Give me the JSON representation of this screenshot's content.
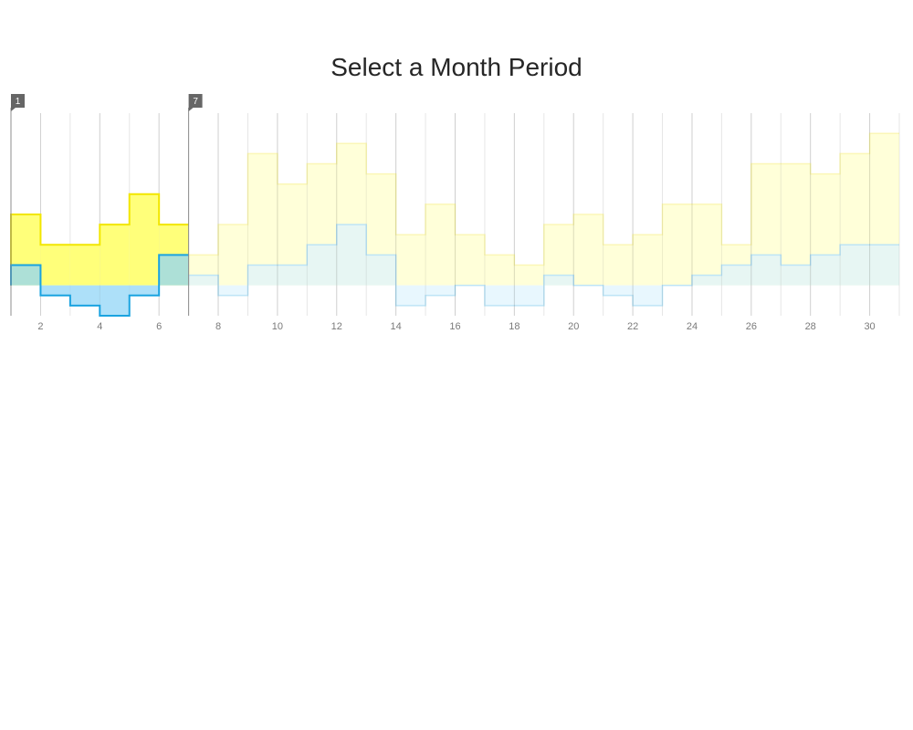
{
  "chart_data": {
    "type": "area",
    "step": true,
    "title": "Select a Month Period",
    "xlabel": "",
    "ylabel": "",
    "x": [
      1,
      2,
      3,
      4,
      5,
      6,
      7,
      8,
      9,
      10,
      11,
      12,
      13,
      14,
      15,
      16,
      17,
      18,
      19,
      20,
      21,
      22,
      23,
      24,
      25,
      26,
      27,
      28,
      29,
      30
    ],
    "xlim": [
      1,
      31
    ],
    "ylim": [
      -3,
      17
    ],
    "x_tick_labels": [
      "2",
      "4",
      "6",
      "8",
      "10",
      "12",
      "14",
      "16",
      "18",
      "20",
      "22",
      "24",
      "26",
      "28",
      "30"
    ],
    "series": [
      {
        "values": [
          7,
          4,
          4,
          6,
          9,
          6,
          3,
          6,
          13,
          10,
          12,
          14,
          11,
          5,
          8,
          5,
          3,
          2,
          6,
          7,
          4,
          5,
          8,
          8,
          4,
          12,
          12,
          11,
          13,
          15
        ],
        "color": "#ffff7a",
        "stroke": "#f2e600"
      },
      {
        "values": [
          2,
          -1,
          -2,
          -3,
          -1,
          3,
          1,
          -1,
          2,
          2,
          4,
          6,
          3,
          -2,
          -1,
          0,
          -2,
          -2,
          1,
          0,
          -1,
          -2,
          0,
          1,
          2,
          3,
          2,
          3,
          4,
          4
        ],
        "color": "#92d6f7",
        "stroke": "#1aa3e0"
      }
    ],
    "selection": {
      "start": 1,
      "end": 7,
      "start_label": "1",
      "end_label": "7"
    },
    "grid": true
  }
}
